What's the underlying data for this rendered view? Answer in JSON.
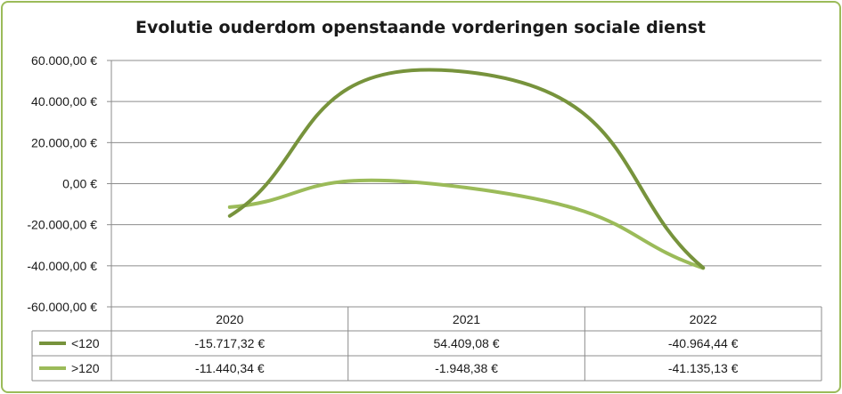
{
  "chart_data": {
    "type": "line",
    "title": "Evolutie ouderdom openstaande vorderingen sociale dienst",
    "categories": [
      "2020",
      "2021",
      "2022"
    ],
    "y_ticks": [
      "60.000,00 €",
      "40.000,00 €",
      "20.000,00 €",
      "0,00 €",
      "-20.000,00 €",
      "-40.000,00 €",
      "-60.000,00 €"
    ],
    "ylim": [
      -60000,
      60000
    ],
    "grid": true,
    "legend": "data-table",
    "series": [
      {
        "name": "<120",
        "color": "#77933c",
        "values": [
          -15717.32,
          54409.08,
          -40964.44
        ],
        "labels": [
          "-15.717,32 €",
          "54.409,08 €",
          "-40.964,44 €"
        ]
      },
      {
        "name": ">120",
        "color": "#9bbb59",
        "values": [
          -11440.34,
          -1948.38,
          -41135.13
        ],
        "labels": [
          "-11.440,34 €",
          "-1.948,38 €",
          "-41.135,13 €"
        ]
      }
    ]
  }
}
